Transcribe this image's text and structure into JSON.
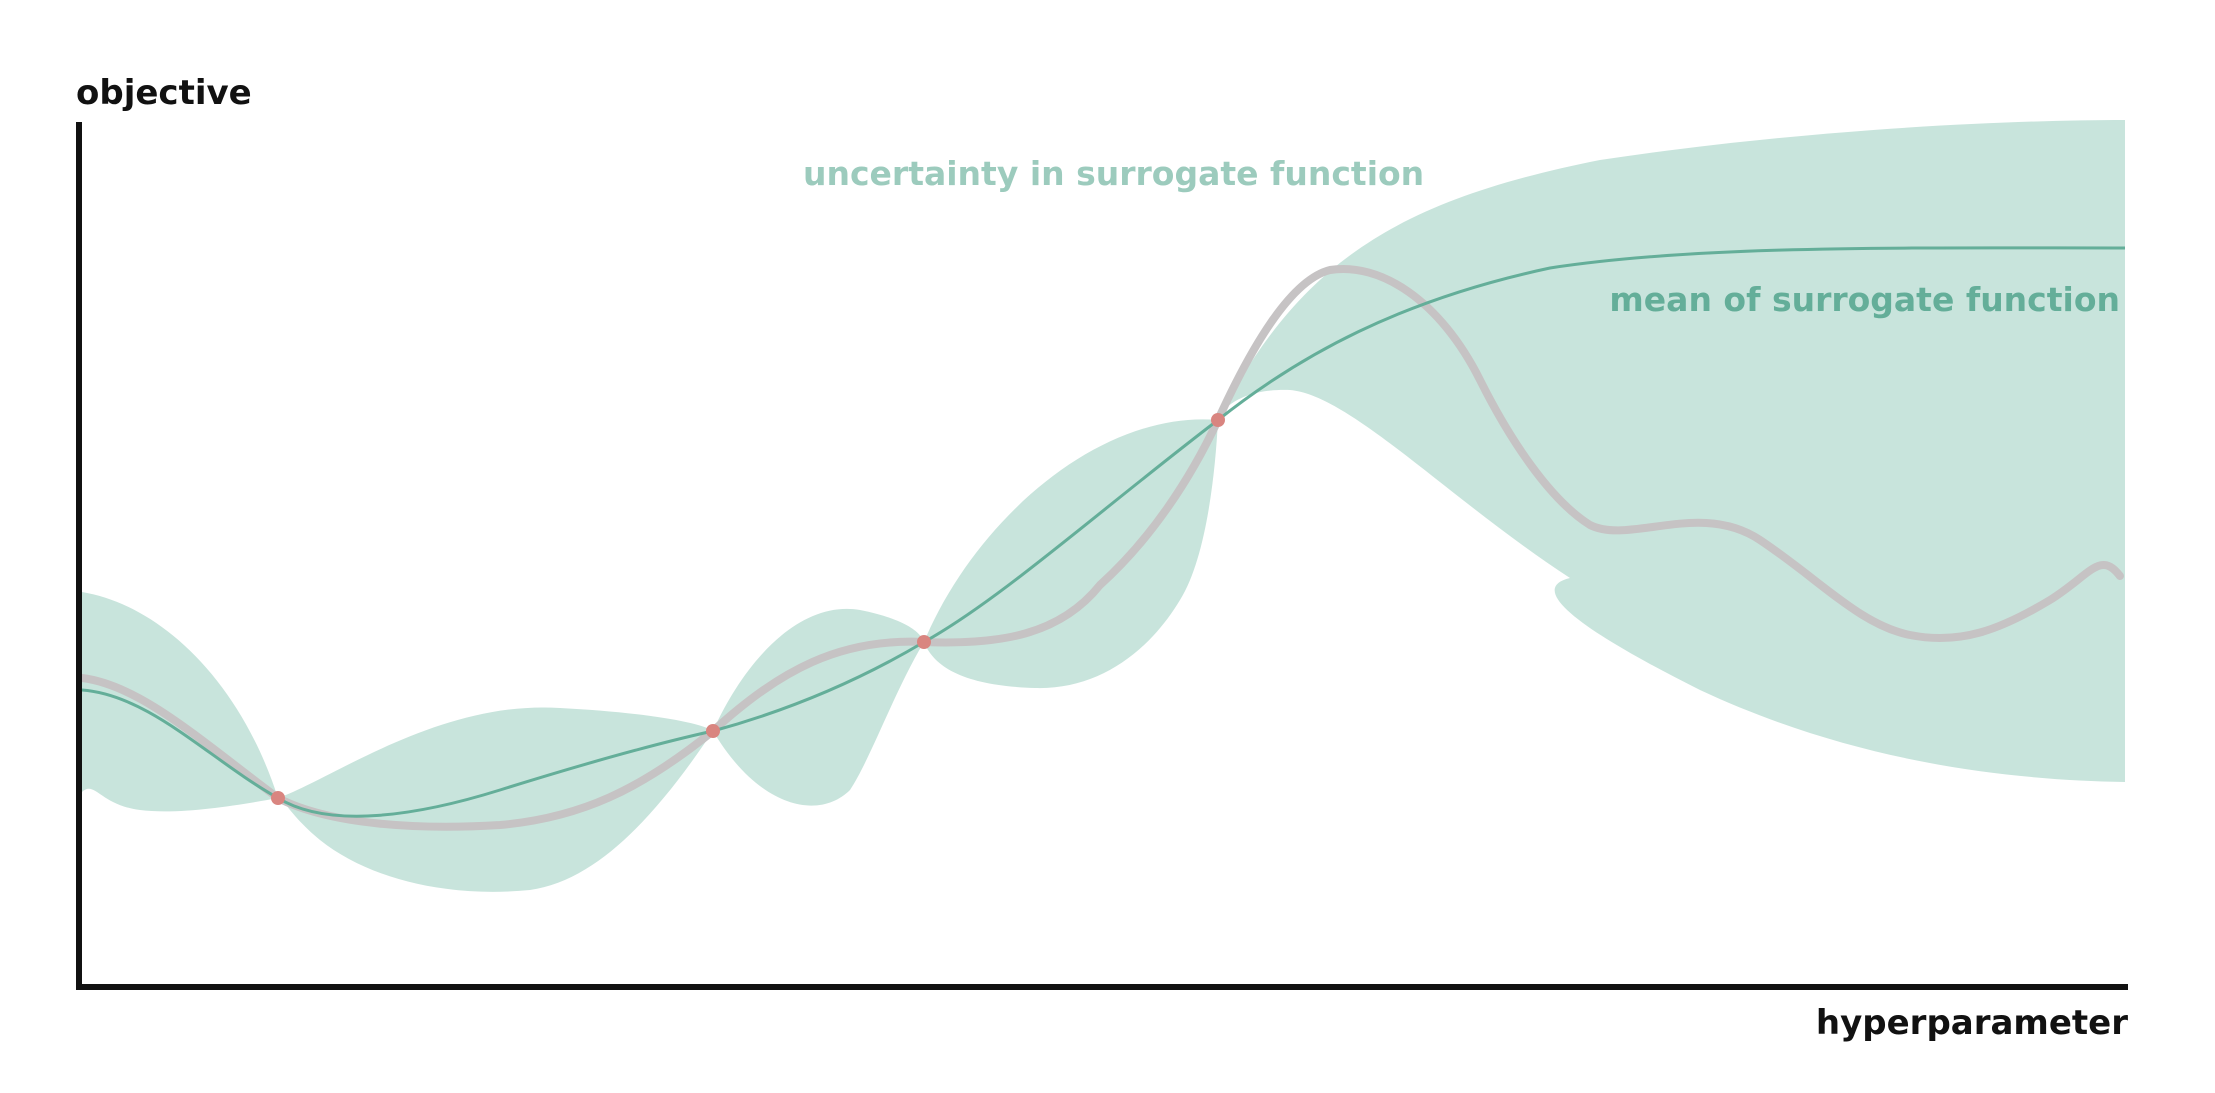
{
  "diagram": {
    "y_axis_title": "objective",
    "x_axis_title": "hyperparameter",
    "uncertainty_label": "uncertainty in surrogate function",
    "mean_label": "mean of surrogate function"
  },
  "colors": {
    "axis": "#111111",
    "uncertainty_band": "#c8e4dc",
    "uncertainty_label": "#9ccbbd",
    "mean_line": "#64ae99",
    "mean_label": "#64ae99",
    "true_function": "#c6c3c4",
    "observation": "#d98580"
  },
  "icons": {
    "observation_marker": "circle"
  }
}
